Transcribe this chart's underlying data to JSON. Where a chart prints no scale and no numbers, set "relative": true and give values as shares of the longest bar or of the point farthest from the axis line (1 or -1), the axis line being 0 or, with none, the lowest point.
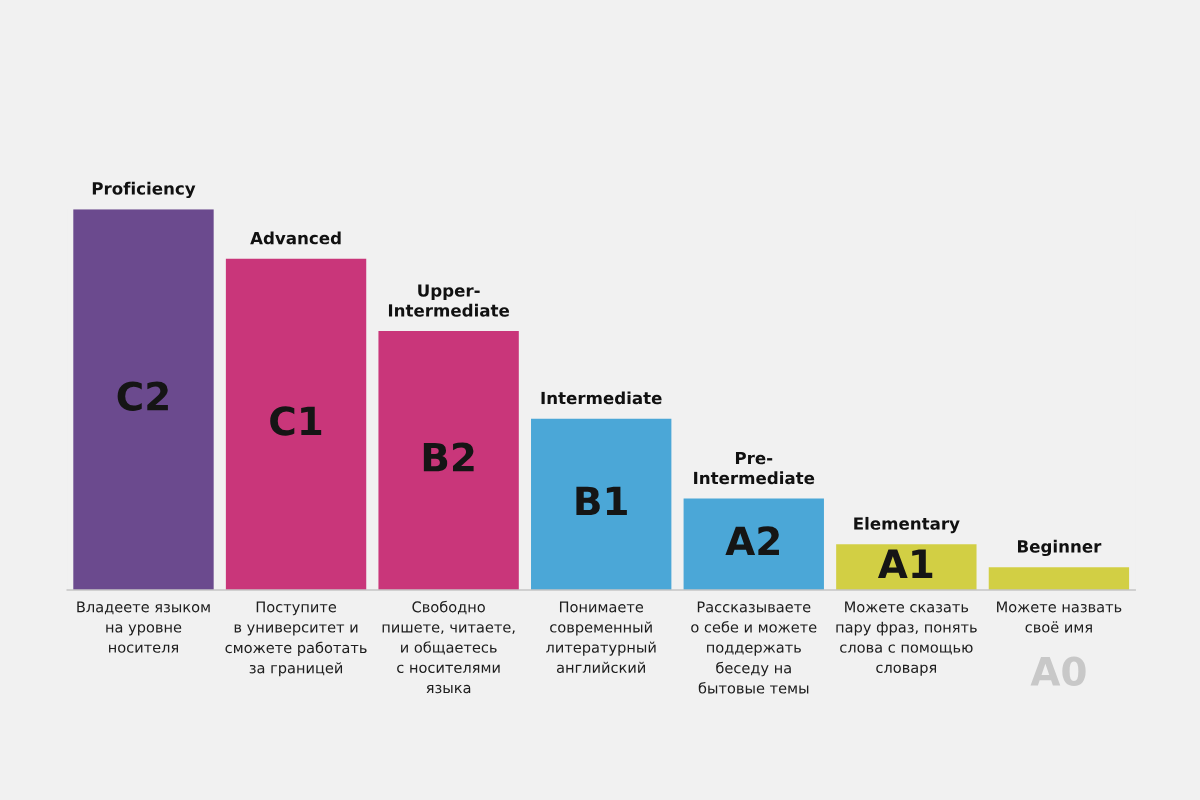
{
  "chart_data": {
    "type": "bar",
    "relative": true,
    "categories": [
      "C2",
      "C1",
      "B2",
      "B1",
      "A2",
      "A1",
      "A0"
    ],
    "values": [
      1,
      0.87,
      0.68,
      0.45,
      0.24,
      0.12,
      0.06
    ],
    "colors": [
      "#6b4a8e",
      "#c9367a",
      "#c9367a",
      "#4ba7d7",
      "#4ba7d7",
      "#d2cf44",
      "#d2cf44"
    ],
    "annotations": [
      {
        "text": "Proficiency",
        "x": "C2",
        "y": 1
      },
      {
        "text": "Advanced",
        "x": "C1",
        "y": 0.87
      },
      {
        "text": "Upper-\nIntermediate",
        "x": "B2",
        "y": 0.68
      },
      {
        "text": "Intermediate",
        "x": "B1",
        "y": 0.45
      },
      {
        "text": "Pre-\nIntermediate",
        "x": "A2",
        "y": 0.24
      },
      {
        "text": "Elementary",
        "x": "A1",
        "y": 0.12
      },
      {
        "text": "Beginner",
        "x": "A0",
        "y": 0.06
      },
      "Владеете языком\nна уровне\nносителя",
      "Поступите\nв университет и\nсможете работать\nза границей",
      "Свободно\nпишете, читаете,\nи общаетесь\nс носителями\nязыка",
      "Понимаете\nсовременный\nлитературный\nанглийский",
      "Рассказываете\nо себе и можете\nподдержать\nбеседу на\nбытовые темы",
      "Можете сказать\nпару фраз, понять\nслова с помощью\nсловаря",
      "Можете назвать\nсвоё имя"
    ]
  }
}
